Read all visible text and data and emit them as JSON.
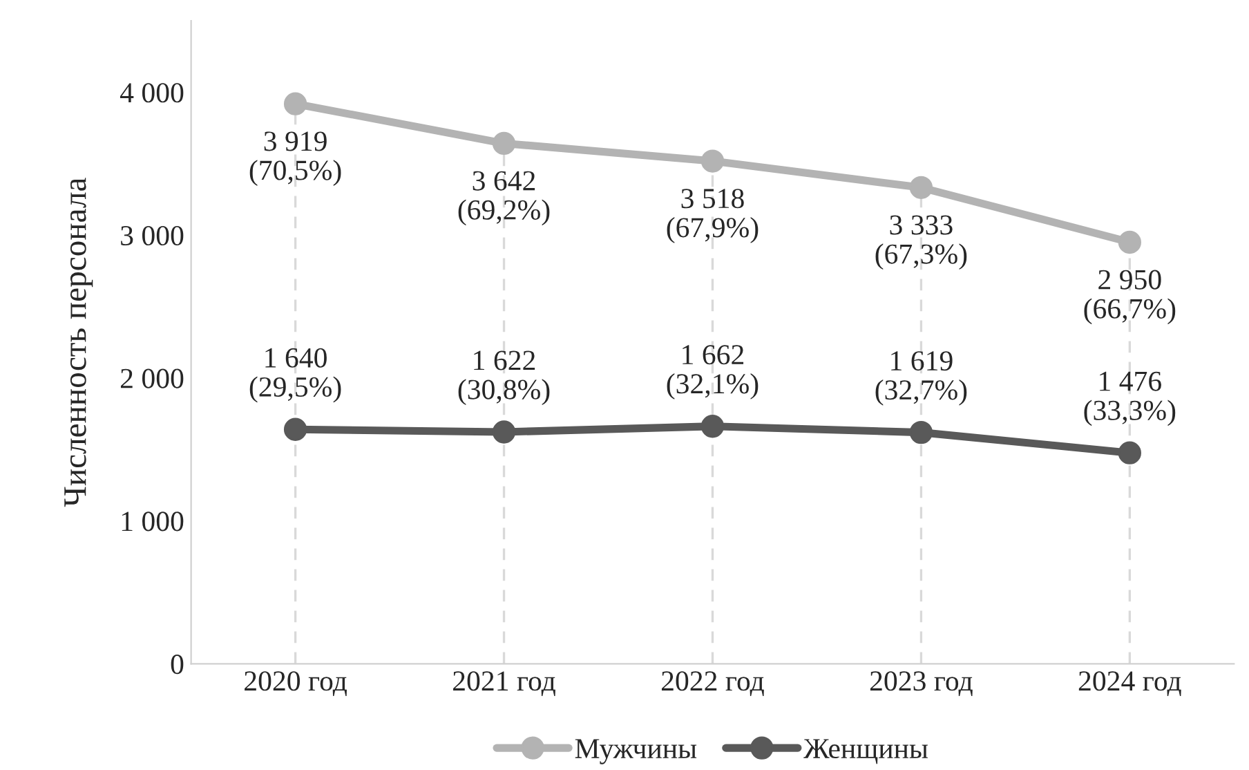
{
  "chart_data": {
    "type": "line",
    "ylabel": "Численность персонала",
    "categories": [
      "2020 год",
      "2021 год",
      "2022 год",
      "2023 год",
      "2024 год"
    ],
    "series": [
      {
        "name": "Мужчины",
        "color": "#b3b3b3",
        "values": [
          3919,
          3642,
          3518,
          3333,
          2950
        ],
        "value_labels": [
          "3 919\n(70,5%)",
          "3 642\n(69,2%)",
          "3 518\n(67,9%)",
          "3 333\n(67,3%)",
          "2 950\n(66,7%)"
        ]
      },
      {
        "name": "Женщины",
        "color": "#595959",
        "values": [
          1640,
          1622,
          1662,
          1619,
          1476
        ],
        "value_labels": [
          "1 640\n(29,5%)",
          "1 622\n(30,8%)",
          "1 662\n(32,1%)",
          "1 619\n(32,7%)",
          "1 476\n(33,3%)"
        ]
      }
    ],
    "ylim": [
      0,
      4500
    ],
    "yticks": [
      {
        "value": 0,
        "label": "0"
      },
      {
        "value": 1000,
        "label": "1 000"
      },
      {
        "value": 2000,
        "label": "2 000"
      },
      {
        "value": 3000,
        "label": "3 000"
      },
      {
        "value": 4000,
        "label": "4 000"
      }
    ],
    "grid": "x",
    "legend": "bottom",
    "marker": "circle",
    "line_style": "solid"
  }
}
